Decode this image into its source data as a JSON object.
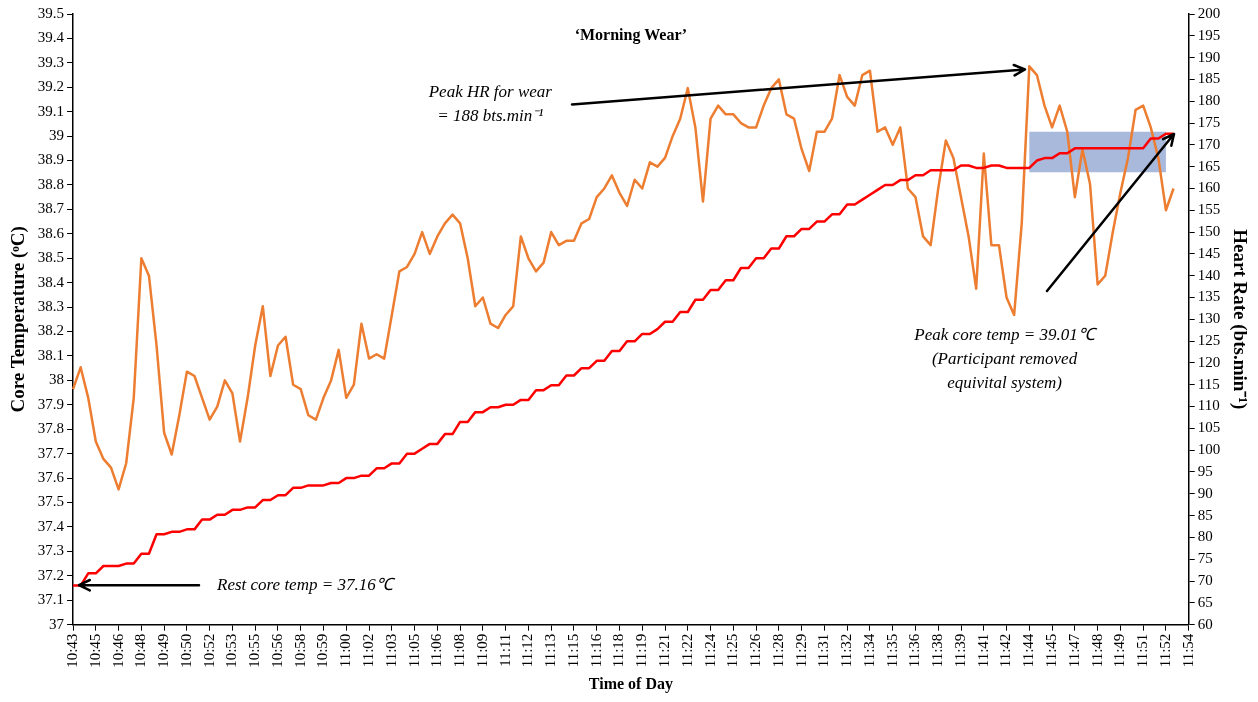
{
  "chart_data": {
    "type": "line",
    "title": "‘Morning Wear’",
    "xlabel": "Time of Day",
    "ylabel": "Core Temperature (ᵒC)",
    "y2label": "Heart Rate (bts.min⁻¹)",
    "categories": [
      "10:43",
      null,
      null,
      "10:45",
      null,
      null,
      "10:46",
      null,
      null,
      "10:48",
      null,
      null,
      "10:49",
      null,
      null,
      "10:50",
      null,
      null,
      "10:52",
      null,
      null,
      "10:53",
      null,
      null,
      "10:55",
      null,
      null,
      "10:56",
      null,
      null,
      "10:58",
      null,
      null,
      "10:59",
      null,
      null,
      "11:00",
      null,
      null,
      "11:02",
      null,
      null,
      "11:03",
      null,
      null,
      "11:05",
      null,
      null,
      "11:06",
      null,
      null,
      "11:08",
      null,
      null,
      "11:09",
      null,
      null,
      "11:11",
      null,
      null,
      "11:12",
      null,
      null,
      "11:13",
      null,
      null,
      "11:15",
      null,
      null,
      "11:16",
      null,
      null,
      "11:18",
      null,
      null,
      "11:19",
      null,
      null,
      "11:21",
      null,
      null,
      "11:22",
      null,
      null,
      "11:24",
      null,
      null,
      "11:25",
      null,
      null,
      "11:26",
      null,
      null,
      "11:28",
      null,
      null,
      "11:29",
      null,
      null,
      "11:31",
      null,
      null,
      "11:32",
      null,
      null,
      "11:34",
      null,
      null,
      "11:35",
      null,
      null,
      "11:36",
      null,
      null,
      "11:38",
      null,
      null,
      "11:39",
      null,
      null,
      "11:41",
      null,
      null,
      "11:42",
      null,
      null,
      "11:44",
      null,
      null,
      "11:45",
      null,
      null,
      "11:47",
      null,
      null,
      "11:48",
      null,
      null,
      "11:49",
      null,
      null,
      "11:51",
      null,
      null,
      "11:52",
      null,
      null,
      "11:54"
    ],
    "series": [
      {
        "color": "#ff0000",
        "axis": "y",
        "values": [
          37.16,
          37.16,
          37.21,
          37.21,
          37.24,
          37.24,
          37.24,
          37.25,
          37.25,
          37.29,
          37.29,
          37.37,
          37.37,
          37.38,
          37.38,
          37.39,
          37.39,
          37.43,
          37.43,
          37.45,
          37.45,
          37.47,
          37.47,
          37.48,
          37.48,
          37.51,
          37.51,
          37.53,
          37.53,
          37.56,
          37.56,
          37.57,
          37.57,
          37.57,
          37.58,
          37.58,
          37.6,
          37.6,
          37.61,
          37.61,
          37.64,
          37.64,
          37.66,
          37.66,
          37.7,
          37.7,
          37.72,
          37.74,
          37.74,
          37.78,
          37.78,
          37.83,
          37.83,
          37.87,
          37.87,
          37.89,
          37.89,
          37.9,
          37.9,
          37.92,
          37.92,
          37.96,
          37.96,
          37.98,
          37.98,
          38.02,
          38.02,
          38.05,
          38.05,
          38.08,
          38.08,
          38.12,
          38.12,
          38.16,
          38.16,
          38.19,
          38.19,
          38.21,
          38.24,
          38.24,
          38.28,
          38.28,
          38.33,
          38.33,
          38.37,
          38.37,
          38.41,
          38.41,
          38.46,
          38.46,
          38.5,
          38.5,
          38.54,
          38.54,
          38.59,
          38.59,
          38.62,
          38.62,
          38.65,
          38.65,
          38.68,
          38.68,
          38.72,
          38.72,
          38.74,
          38.76,
          38.78,
          38.8,
          38.8,
          38.82,
          38.82,
          38.84,
          38.84,
          38.86,
          38.86,
          38.86,
          38.86,
          38.88,
          38.88,
          38.87,
          38.87,
          38.88,
          38.88,
          38.87,
          38.87,
          38.87,
          38.87,
          38.9,
          38.91,
          38.91,
          38.93,
          38.93,
          38.95,
          38.95,
          38.95,
          38.95,
          38.95,
          38.95,
          38.95,
          38.95,
          38.95,
          38.95,
          38.99,
          38.99,
          39.01,
          39.01,
          null,
          null
        ]
      },
      {
        "color": "#ed7d31",
        "axis": "y2",
        "values": [
          114,
          119,
          112,
          102,
          98,
          96,
          91,
          97,
          112,
          144,
          140,
          124,
          104,
          99,
          108,
          118,
          117,
          112,
          107,
          110,
          116,
          113,
          102,
          112,
          124,
          133,
          117,
          124,
          126,
          115,
          114,
          108,
          107,
          112,
          116,
          123,
          112,
          115,
          129,
          121,
          122,
          121,
          131,
          141,
          142,
          145,
          150,
          145,
          149,
          152,
          154,
          152,
          144,
          133,
          135,
          129,
          128,
          131,
          133,
          149,
          144,
          141,
          143,
          150,
          147,
          148,
          148,
          152,
          153,
          158,
          160,
          163,
          159,
          156,
          162,
          160,
          166,
          165,
          167,
          172,
          176,
          183,
          174,
          157,
          176,
          179,
          177,
          177,
          175,
          174,
          174,
          179,
          183,
          185,
          177,
          176,
          169,
          164,
          173,
          173,
          176,
          186,
          181,
          179,
          186,
          187,
          173,
          174,
          170,
          174,
          160,
          158,
          149,
          147,
          160,
          171,
          167,
          158,
          149,
          137,
          168,
          147,
          147,
          135,
          131,
          152,
          188,
          186,
          179,
          174,
          179,
          173,
          158,
          169,
          161,
          138,
          140,
          150,
          159,
          167,
          178,
          179,
          174,
          167,
          155,
          160,
          null,
          null
        ]
      }
    ],
    "ylim": [
      37,
      39.5
    ],
    "yticks": [
      37,
      37.1,
      37.2,
      37.3,
      37.4,
      37.5,
      37.6,
      37.7,
      37.8,
      37.9,
      38,
      38.1,
      38.2,
      38.3,
      38.4,
      38.5,
      38.6,
      38.7,
      38.8,
      38.9,
      39,
      39.1,
      39.2,
      39.3,
      39.4,
      39.5
    ],
    "y2lim": [
      60,
      200
    ],
    "y2ticks": [
      60,
      65,
      70,
      75,
      80,
      85,
      90,
      95,
      100,
      105,
      110,
      115,
      120,
      125,
      130,
      135,
      140,
      145,
      150,
      155,
      160,
      165,
      170,
      175,
      180,
      185,
      190,
      195,
      200
    ],
    "annotations": [
      {
        "text": "Rest core temp = 37.16℃",
        "x": "10:43",
        "y": 37.16
      },
      "Peak HR for wear\n= 188 bts.min⁻¹",
      "Peak core temp = 39.01℃\n(Participant removed\nequivital system)"
    ],
    "bands": [
      {
        "axis": "x",
        "from": "11:44",
        "to": "11:52",
        "color": "#a9b9dc"
      }
    ],
    "grid": false,
    "legend": false,
    "marker": "none",
    "line_style": "solid"
  }
}
